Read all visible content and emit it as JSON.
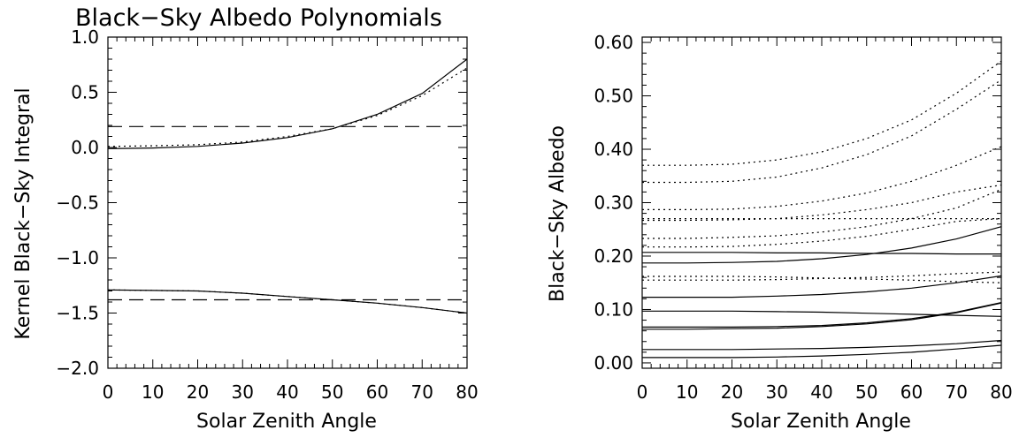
{
  "chart_data": [
    {
      "type": "line",
      "title": "Black−Sky Albedo Polynomials",
      "xlabel": "Solar Zenith Angle",
      "ylabel": "Kernel Black−Sky Integral",
      "xlim": [
        0,
        80
      ],
      "ylim": [
        -2.0,
        1.0
      ],
      "xticks": [
        0,
        10,
        20,
        30,
        40,
        50,
        60,
        70,
        80
      ],
      "xtick_labels": [
        "0",
        "10",
        "20",
        "30",
        "40",
        "50",
        "60",
        "70",
        "80"
      ],
      "yticks": [
        -2.0,
        -1.5,
        -1.0,
        -0.5,
        0.0,
        0.5,
        1.0
      ],
      "ytick_labels": [
        "−2.0",
        "−1.5",
        "−1.0",
        "−0.5",
        "0.0",
        "0.5",
        "1.0"
      ],
      "grid": false,
      "x": [
        0,
        10,
        20,
        30,
        40,
        50,
        60,
        70,
        80
      ],
      "series": [
        {
          "style": "solid",
          "values": [
            -0.01,
            -0.005,
            0.01,
            0.04,
            0.09,
            0.17,
            0.3,
            0.49,
            0.8
          ]
        },
        {
          "style": "dotted",
          "values": [
            0.01,
            0.015,
            0.025,
            0.05,
            0.1,
            0.17,
            0.29,
            0.47,
            0.72
          ]
        },
        {
          "style": "dashed",
          "values": [
            0.19,
            0.19,
            0.19,
            0.19,
            0.19,
            0.19,
            0.19,
            0.19,
            0.19
          ]
        },
        {
          "style": "solid",
          "values": [
            -1.29,
            -1.295,
            -1.3,
            -1.32,
            -1.35,
            -1.38,
            -1.41,
            -1.45,
            -1.5
          ]
        },
        {
          "style": "dotted",
          "values": [
            -1.29,
            -1.295,
            -1.3,
            -1.32,
            -1.35,
            -1.38,
            -1.41,
            -1.45,
            -1.5
          ]
        },
        {
          "style": "dashed",
          "values": [
            -1.38,
            -1.38,
            -1.38,
            -1.38,
            -1.38,
            -1.38,
            -1.38,
            -1.38,
            -1.38
          ]
        }
      ]
    },
    {
      "type": "line",
      "title": "",
      "xlabel": "Solar Zenith Angle",
      "ylabel": "Black−Sky Albedo",
      "xlim": [
        0,
        80
      ],
      "ylim": [
        -0.01,
        0.61
      ],
      "xticks": [
        0,
        10,
        20,
        30,
        40,
        50,
        60,
        70,
        80
      ],
      "xtick_labels": [
        "0",
        "10",
        "20",
        "30",
        "40",
        "50",
        "60",
        "70",
        "80"
      ],
      "yticks": [
        0.0,
        0.1,
        0.2,
        0.3,
        0.4,
        0.5,
        0.6
      ],
      "ytick_labels": [
        "0.00",
        "0.10",
        "0.20",
        "0.30",
        "0.40",
        "0.50",
        "0.60"
      ],
      "grid": false,
      "x": [
        0,
        10,
        20,
        30,
        40,
        50,
        60,
        70,
        80
      ],
      "series": [
        {
          "style": "dotted",
          "values": [
            0.37,
            0.37,
            0.372,
            0.38,
            0.395,
            0.42,
            0.455,
            0.505,
            0.565
          ]
        },
        {
          "style": "dotted",
          "values": [
            0.338,
            0.338,
            0.34,
            0.348,
            0.365,
            0.39,
            0.425,
            0.475,
            0.53
          ]
        },
        {
          "style": "dotted",
          "values": [
            0.287,
            0.287,
            0.288,
            0.293,
            0.303,
            0.318,
            0.34,
            0.37,
            0.405
          ]
        },
        {
          "style": "dotted",
          "values": [
            0.267,
            0.267,
            0.268,
            0.27,
            0.277,
            0.287,
            0.3,
            0.32,
            0.333
          ]
        },
        {
          "style": "dotted",
          "values": [
            0.233,
            0.233,
            0.235,
            0.238,
            0.245,
            0.255,
            0.27,
            0.29,
            0.325
          ]
        },
        {
          "style": "dotted",
          "values": [
            0.217,
            0.217,
            0.218,
            0.222,
            0.228,
            0.237,
            0.25,
            0.265,
            0.27
          ]
        },
        {
          "style": "dotted",
          "values": [
            0.162,
            0.162,
            0.162,
            0.161,
            0.159,
            0.157,
            0.155,
            0.152,
            0.15
          ]
        },
        {
          "style": "dotted",
          "values": [
            0.155,
            0.155,
            0.155,
            0.156,
            0.158,
            0.16,
            0.163,
            0.167,
            0.17
          ]
        },
        {
          "style": "dotted",
          "values": [
            0.27,
            0.27,
            0.27,
            0.27,
            0.27,
            0.27,
            0.27,
            0.27,
            0.27
          ]
        },
        {
          "style": "solid",
          "values": [
            0.207,
            0.207,
            0.207,
            0.206,
            0.206,
            0.205,
            0.205,
            0.204,
            0.204
          ]
        },
        {
          "style": "solid",
          "values": [
            0.187,
            0.187,
            0.188,
            0.19,
            0.195,
            0.203,
            0.215,
            0.232,
            0.255
          ]
        },
        {
          "style": "solid",
          "values": [
            0.123,
            0.123,
            0.123,
            0.125,
            0.128,
            0.133,
            0.14,
            0.15,
            0.163
          ]
        },
        {
          "style": "solid",
          "values": [
            0.097,
            0.097,
            0.097,
            0.096,
            0.095,
            0.093,
            0.091,
            0.089,
            0.087
          ]
        },
        {
          "style": "solid",
          "values": [
            0.067,
            0.067,
            0.067,
            0.068,
            0.07,
            0.075,
            0.083,
            0.095,
            0.113
          ]
        },
        {
          "style": "solid",
          "values": [
            0.063,
            0.063,
            0.064,
            0.065,
            0.068,
            0.073,
            0.081,
            0.094,
            0.112
          ]
        },
        {
          "style": "solid",
          "values": [
            0.025,
            0.025,
            0.025,
            0.026,
            0.027,
            0.029,
            0.032,
            0.036,
            0.042
          ]
        },
        {
          "style": "solid",
          "values": [
            0.01,
            0.01,
            0.01,
            0.011,
            0.013,
            0.016,
            0.02,
            0.026,
            0.033
          ]
        }
      ]
    }
  ]
}
